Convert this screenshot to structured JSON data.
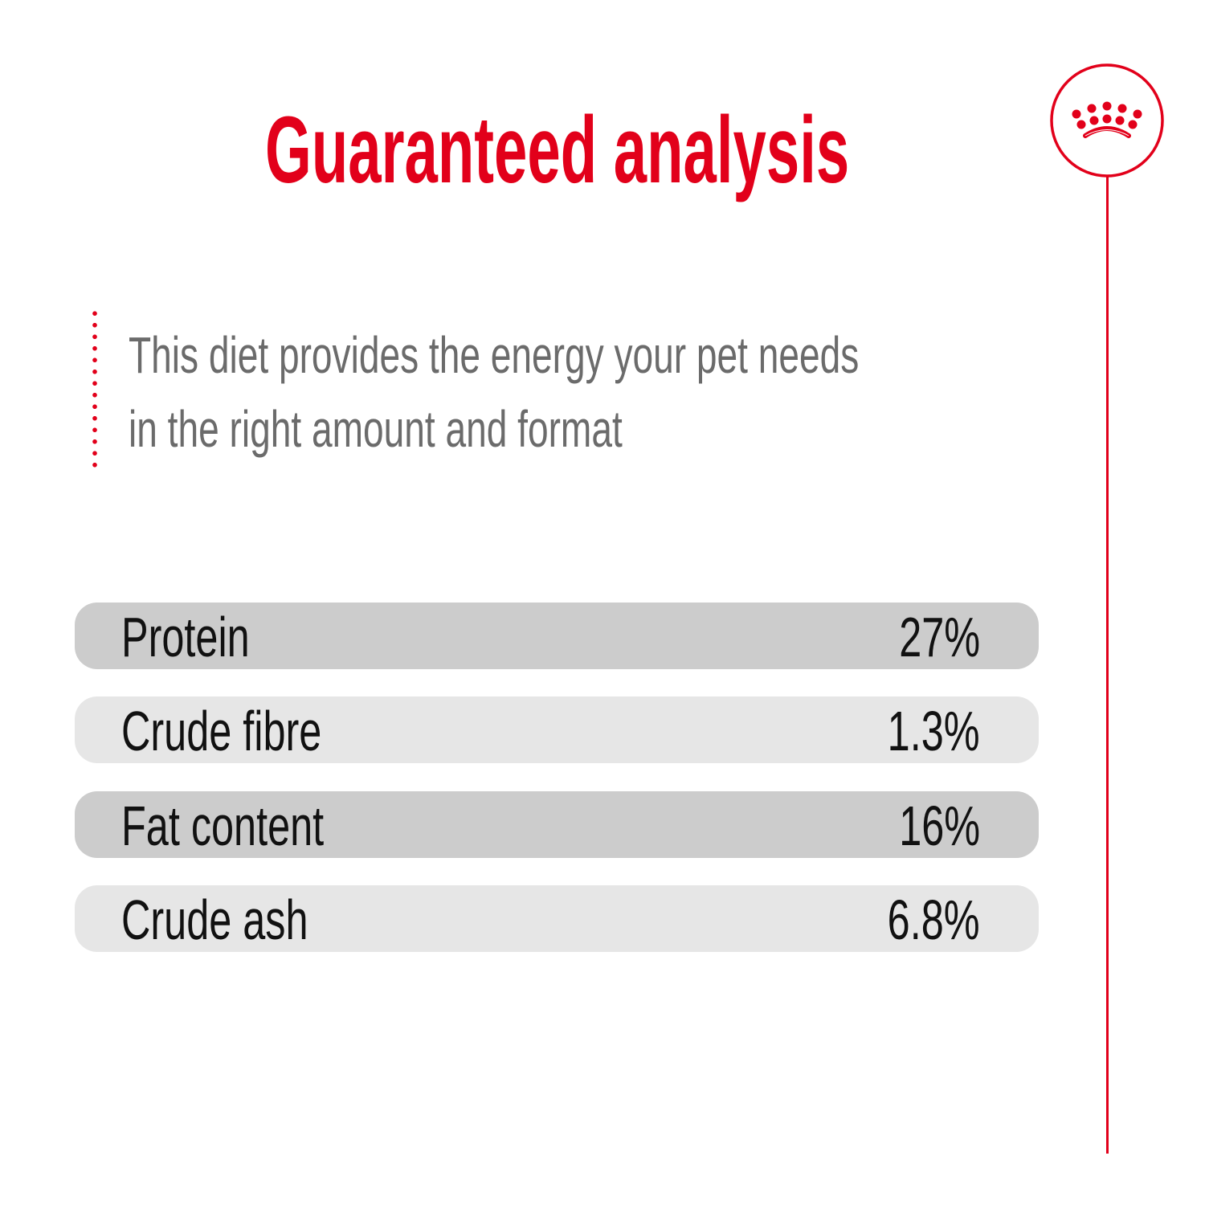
{
  "title": "Guaranteed analysis",
  "description": {
    "line1": "This diet provides the energy your pet needs",
    "line2": "in the right amount and format"
  },
  "brand_color": "#e2001a",
  "logo_icon": "crown-icon",
  "nutrients": [
    {
      "label": "Protein",
      "value": "27%"
    },
    {
      "label": "Crude fibre",
      "value": "1.3%"
    },
    {
      "label": "Fat content",
      "value": "16%"
    },
    {
      "label": "Crude ash",
      "value": "6.8%"
    }
  ]
}
